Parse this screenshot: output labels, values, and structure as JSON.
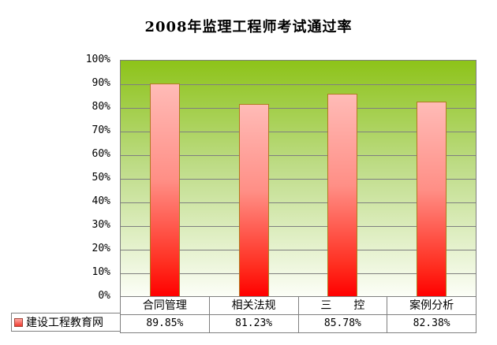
{
  "title": "2008年监理工程师考试通过率",
  "legend": {
    "marker_icon": "red-gradient-square-icon",
    "label": "建设工程教育网"
  },
  "chart_data": {
    "type": "bar",
    "title": "2008年监理工程师考试通过率",
    "categories": [
      "合同管理",
      "相关法规",
      "三　　控",
      "案例分析"
    ],
    "values": [
      89.85,
      81.23,
      85.78,
      82.38
    ],
    "value_labels": [
      "89.85%",
      "81.23%",
      "85.78%",
      "82.38%"
    ],
    "series": [
      {
        "name": "建设工程教育网",
        "values": [
          89.85,
          81.23,
          85.78,
          82.38
        ]
      }
    ],
    "xlabel": "",
    "ylabel": "",
    "ylim": [
      0,
      100
    ],
    "y_tick_step": 10,
    "y_ticks": [
      "100%",
      "90%",
      "80%",
      "70%",
      "60%",
      "50%",
      "40%",
      "30%",
      "20%",
      "10%",
      "0%"
    ],
    "grid": true,
    "data_table": true,
    "legend_position": "bottom-left",
    "colors": {
      "plot_bg_top": "#8DC319",
      "plot_bg_bottom": "#FCFEF7",
      "bar_top": "#FFBBB7",
      "bar_bottom": "#FF0000",
      "bar_border": "#AF7C1E",
      "gridline": "#7F7F7F",
      "table_border": "#7F7F7F",
      "title_color": "#000000",
      "background": "#FFFFFF"
    }
  }
}
